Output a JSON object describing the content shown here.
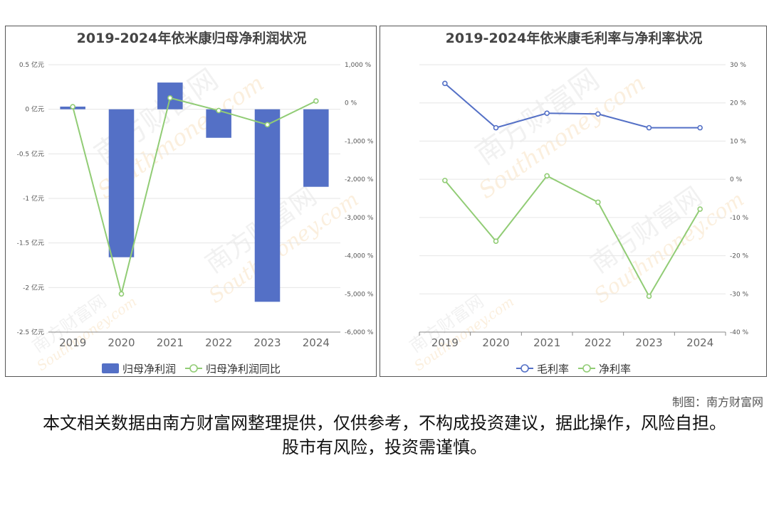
{
  "credit": "制图：南方财富网",
  "disclaimer": "本文相关数据由南方财富网整理提供，仅供参考，不构成投资建议，据此操作，风险自担。股市有风险，投资需谨慎。",
  "watermark": {
    "cn": "南方财富网",
    "en": "Southmoney.com"
  },
  "chart_data": [
    {
      "type": "bar",
      "title": "2019-2024年依米康归母净利润状况",
      "categories": [
        "2019",
        "2020",
        "2021",
        "2022",
        "2023",
        "2024"
      ],
      "y_left": {
        "ticks": [
          "0.5 亿元",
          "0 亿元",
          "-0.5 亿元",
          "-1 亿元",
          "-1.5 亿元",
          "-2 亿元",
          "-2.5 亿元"
        ],
        "range": [
          -2.5,
          0.5
        ]
      },
      "y_right": {
        "ticks": [
          "1,000 %",
          "0 %",
          "-1,000 %",
          "-2,000 %",
          "-3,000 %",
          "-4,000 %",
          "-5,000 %",
          "-6,000 %"
        ],
        "range": [
          -6000,
          1000
        ]
      },
      "series": [
        {
          "name": "归母净利润",
          "kind": "bar",
          "axis": "left",
          "color": "#5470c6",
          "values": [
            0.03,
            -1.66,
            0.3,
            -0.32,
            -2.16,
            -0.87
          ]
        },
        {
          "name": "归母净利润同比",
          "kind": "line",
          "axis": "right",
          "color": "#91cc75",
          "values": [
            -100,
            -5000,
            130,
            -200,
            -570,
            50
          ]
        }
      ],
      "legend": "bottom",
      "grid": true
    },
    {
      "type": "line",
      "title": "2019-2024年依米康毛利率与净利率状况",
      "categories": [
        "2019",
        "2020",
        "2021",
        "2022",
        "2023",
        "2024"
      ],
      "y_right": {
        "ticks": [
          "30 %",
          "20 %",
          "10 %",
          "0 %",
          "-10 %",
          "-20 %",
          "-30 %",
          "-40 %"
        ],
        "range": [
          -40,
          30
        ]
      },
      "series": [
        {
          "name": "毛利率",
          "color": "#5470c6",
          "values": [
            25.1,
            13.5,
            17.3,
            17.1,
            13.5,
            13.5
          ]
        },
        {
          "name": "净利率",
          "color": "#91cc75",
          "values": [
            -0.3,
            -16.2,
            0.9,
            -6.0,
            -30.6,
            -7.8
          ]
        }
      ],
      "legend": "bottom",
      "grid": true
    }
  ]
}
